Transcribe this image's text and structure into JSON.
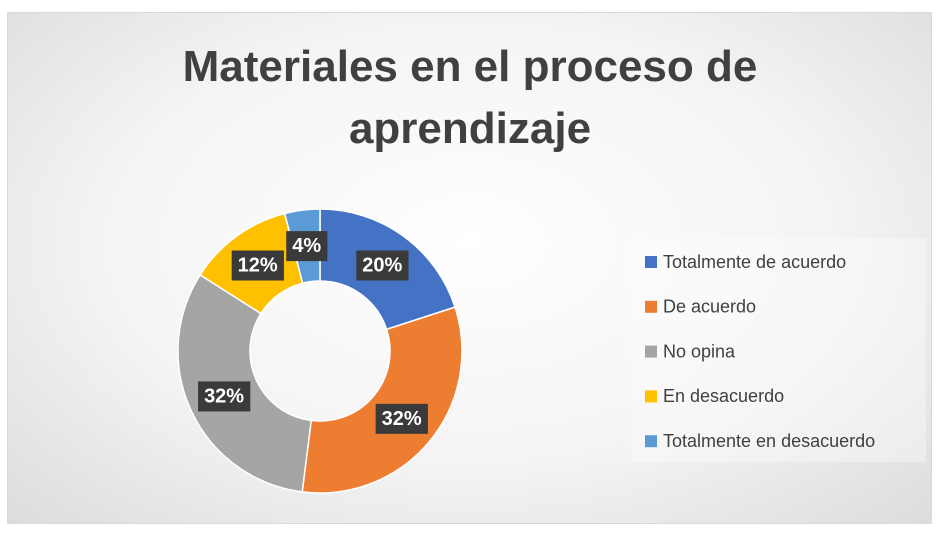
{
  "chart_data": {
    "type": "donut",
    "title": "Materiales en el proceso de aprendizaje",
    "categories": [
      "Totalmente de acuerdo",
      "De acuerdo",
      "No opina",
      "En desacuerdo",
      "Totalmente en desacuerdo"
    ],
    "values": [
      20,
      32,
      32,
      12,
      4
    ],
    "value_labels": [
      "20%",
      "32%",
      "32%",
      "12%",
      "4%"
    ],
    "colors": [
      "#4472c4",
      "#ed7d31",
      "#a5a5a5",
      "#ffc000",
      "#5b9bd5"
    ],
    "legend": "right"
  }
}
